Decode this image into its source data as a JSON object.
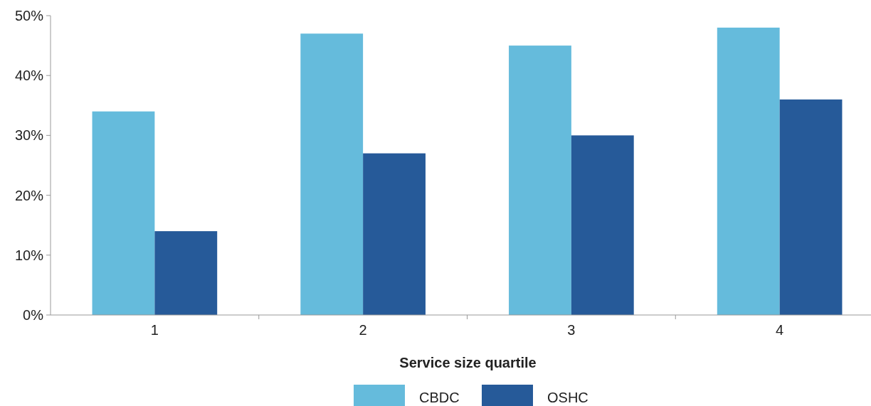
{
  "chart_data": {
    "type": "bar",
    "xlabel": "Service size quartile",
    "categories": [
      "1",
      "2",
      "3",
      "4"
    ],
    "series": [
      {
        "name": "CBDC",
        "color": "#65bbdc",
        "values": [
          34,
          47,
          45,
          48
        ]
      },
      {
        "name": "OSHC",
        "color": "#265a99",
        "values": [
          14,
          27,
          30,
          36
        ]
      }
    ],
    "ylim": [
      0,
      50
    ],
    "yticks": [
      {
        "value": 0,
        "label": "0%"
      },
      {
        "value": 10,
        "label": "10%"
      },
      {
        "value": 20,
        "label": "20%"
      },
      {
        "value": 30,
        "label": "30%"
      },
      {
        "value": 40,
        "label": "40%"
      },
      {
        "value": 50,
        "label": "50%"
      }
    ],
    "grid": false,
    "legend": "bottom"
  }
}
